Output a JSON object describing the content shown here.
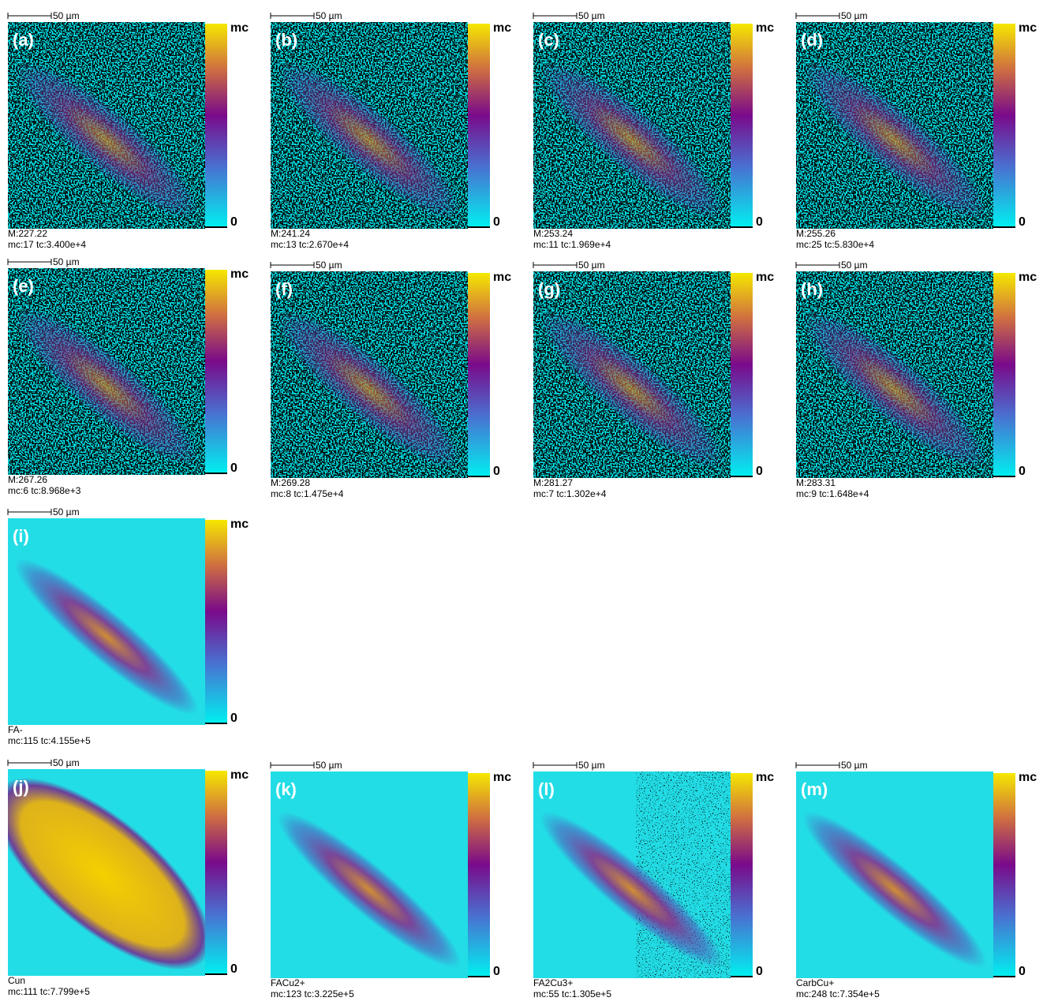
{
  "panels": [
    {
      "label": "(a)",
      "scale_bar": "50 µm",
      "colorbar_max": "mc",
      "colorbar_min": "0",
      "caption_line1": "M:227.22",
      "caption_line2": "mc:17 tc:3.400e+4"
    },
    {
      "label": "(b)",
      "scale_bar": "50 µm",
      "colorbar_max": "mc",
      "colorbar_min": "0",
      "caption_line1": "M:241.24",
      "caption_line2": "mc:13 tc:2.670e+4"
    },
    {
      "label": "(c)",
      "scale_bar": "50 µm",
      "colorbar_max": "mc",
      "colorbar_min": "0",
      "caption_line1": "M:253.24",
      "caption_line2": "mc:11 tc:1.969e+4"
    },
    {
      "label": "(d)",
      "scale_bar": "50 µm",
      "colorbar_max": "mc",
      "colorbar_min": "0",
      "caption_line1": "M:255.26",
      "caption_line2": "mc:25 tc:5.830e+4"
    },
    {
      "label": "(e)",
      "scale_bar": "50 µm",
      "colorbar_max": "mc",
      "colorbar_min": "0",
      "caption_line1": "M:267.26",
      "caption_line2": "mc:6 tc:8.968e+3"
    },
    {
      "label": "(f)",
      "scale_bar": "50 µm",
      "colorbar_max": "mc",
      "colorbar_min": "0",
      "caption_line1": "M:269.28",
      "caption_line2": "mc:8 tc:1.475e+4"
    },
    {
      "label": "(g)",
      "scale_bar": "50 µm",
      "colorbar_max": "mc",
      "colorbar_min": "0",
      "caption_line1": "M:281.27",
      "caption_line2": "mc:7 tc:1.302e+4"
    },
    {
      "label": "(h)",
      "scale_bar": "50 µm",
      "colorbar_max": "mc",
      "colorbar_min": "0",
      "caption_line1": "M:283.31",
      "caption_line2": "mc:9 tc:1.648e+4"
    },
    {
      "label": "(i)",
      "scale_bar": "50 µm",
      "colorbar_max": "mc",
      "colorbar_min": "0",
      "caption_line1": "FA-",
      "caption_line2": "mc:115 tc:4.155e+5"
    },
    {
      "label": "(j)",
      "scale_bar": "50 µm",
      "colorbar_max": "mc",
      "colorbar_min": "0",
      "caption_line1": "Cun",
      "caption_line2": "mc:111 tc:7.799e+5"
    },
    {
      "label": "(k)",
      "scale_bar": "50 µm",
      "colorbar_max": "mc",
      "colorbar_min": "0",
      "caption_line1": "FACu2+",
      "caption_line2": "mc:123 tc:3.225e+5"
    },
    {
      "label": "(l)",
      "scale_bar": "50 µm",
      "colorbar_max": "mc",
      "colorbar_min": "0",
      "caption_line1": "FA2Cu3+",
      "caption_line2": "mc:55 tc:1.305e+5"
    },
    {
      "label": "(m)",
      "scale_bar": "50 µm",
      "colorbar_max": "mc",
      "colorbar_min": "0",
      "caption_line1": "CarbCu+",
      "caption_line2": "mc:248 tc:7.354e+5"
    }
  ]
}
